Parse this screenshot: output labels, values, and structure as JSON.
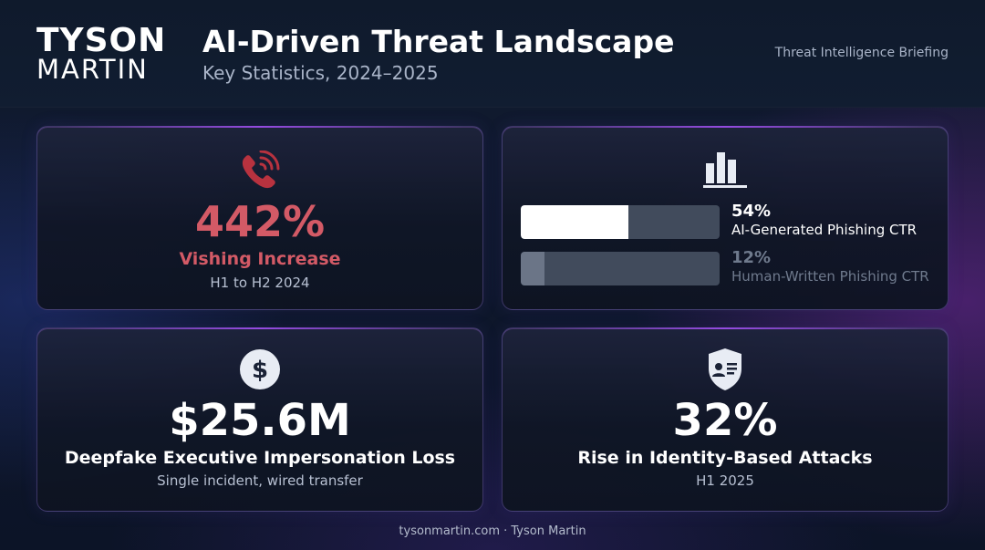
{
  "header": {
    "logo_top": "TYSON",
    "logo_bottom": "MARTIN",
    "title": "AI-Driven Threat Landscape",
    "subtitle": "Key Statistics, 2024–2025",
    "briefing": "Threat Intelligence Briefing"
  },
  "cards": {
    "vishing": {
      "icon": "phone-signal-icon",
      "value": "442%",
      "label": "Vishing Increase",
      "sublabel": "H1 to H2 2024"
    },
    "phishing": {
      "icon": "bar-chart-icon",
      "rows": [
        {
          "value": "54%",
          "label": "AI-Generated Phishing CTR",
          "fraction": 0.54,
          "color": "#ffffff"
        },
        {
          "value": "12%",
          "label": "Human-Written Phishing CTR",
          "fraction": 0.12,
          "color": "#6b7587"
        }
      ]
    },
    "deepfake": {
      "icon": "dollar-icon",
      "value": "$25.6M",
      "label": "Deepfake Executive Impersonation Loss",
      "sublabel": "Single incident, wired transfer"
    },
    "identity": {
      "icon": "shield-id-icon",
      "value": "32%",
      "label": "Rise in Identity-Based Attacks",
      "sublabel": "H1 2025"
    }
  },
  "footer": "tysonmartin.com · Tyson Martin",
  "colors": {
    "accent_red": "#d35a66",
    "background": "#0d1526"
  }
}
